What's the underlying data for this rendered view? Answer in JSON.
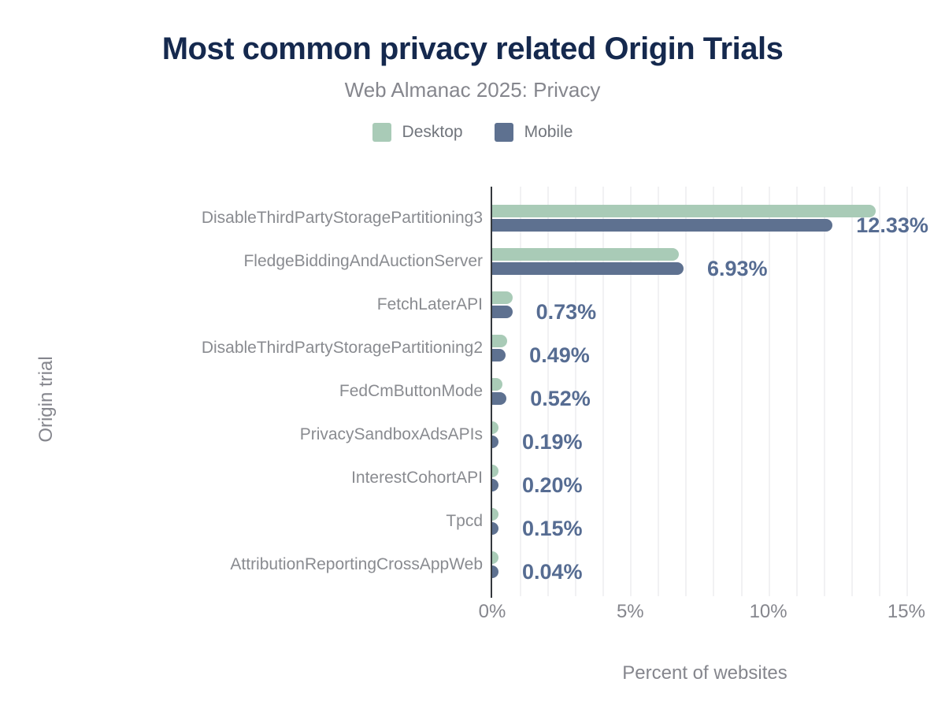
{
  "chart_data": {
    "type": "bar",
    "orientation": "horizontal",
    "title": "Most common privacy related Origin Trials",
    "subtitle": "Web Almanac 2025: Privacy",
    "xlabel": "Percent of websites",
    "ylabel": "Origin trial",
    "xlim": [
      0,
      15.4
    ],
    "gridline_every_percent": 1,
    "grid": true,
    "legend_position": "top",
    "x_ticks": [
      {
        "value": 0,
        "label": "0%"
      },
      {
        "value": 5,
        "label": "5%"
      },
      {
        "value": 10,
        "label": "10%"
      },
      {
        "value": 15,
        "label": "15%"
      }
    ],
    "categories": [
      "DisableThirdPartyStoragePartitioning3",
      "FledgeBiddingAndAuctionServer",
      "FetchLaterAPI",
      "DisableThirdPartyStoragePartitioning2",
      "FedCmButtonMode",
      "PrivacySandboxAdsAPIs",
      "InterestCohortAPI",
      "Tpcd",
      "AttributionReportingCrossAppWeb"
    ],
    "series": [
      {
        "name": "Desktop",
        "color": "#a9cbb7",
        "values": [
          13.9,
          6.76,
          0.75,
          0.55,
          0.38,
          0.22,
          0.24,
          0.18,
          0.05
        ]
      },
      {
        "name": "Mobile",
        "color": "#5e7190",
        "values": [
          12.33,
          6.93,
          0.73,
          0.49,
          0.52,
          0.19,
          0.2,
          0.15,
          0.04
        ]
      }
    ],
    "value_labels": [
      "12.33%",
      "6.93%",
      "0.73%",
      "0.49%",
      "0.52%",
      "0.19%",
      "0.20%",
      "0.15%",
      "0.04%"
    ],
    "value_labels_series": "Mobile"
  },
  "colors": {
    "title": "#15294e",
    "subtitle": "#85868d",
    "axis_text": "#85868d",
    "category_text": "#898b90",
    "legend_text": "#71757c",
    "value_label": "#566c92",
    "axis_line": "#34383d",
    "gridline": "#f1f1f3",
    "desktop": "#a9cbb7",
    "mobile": "#5e7190",
    "background": "#ffffff"
  }
}
